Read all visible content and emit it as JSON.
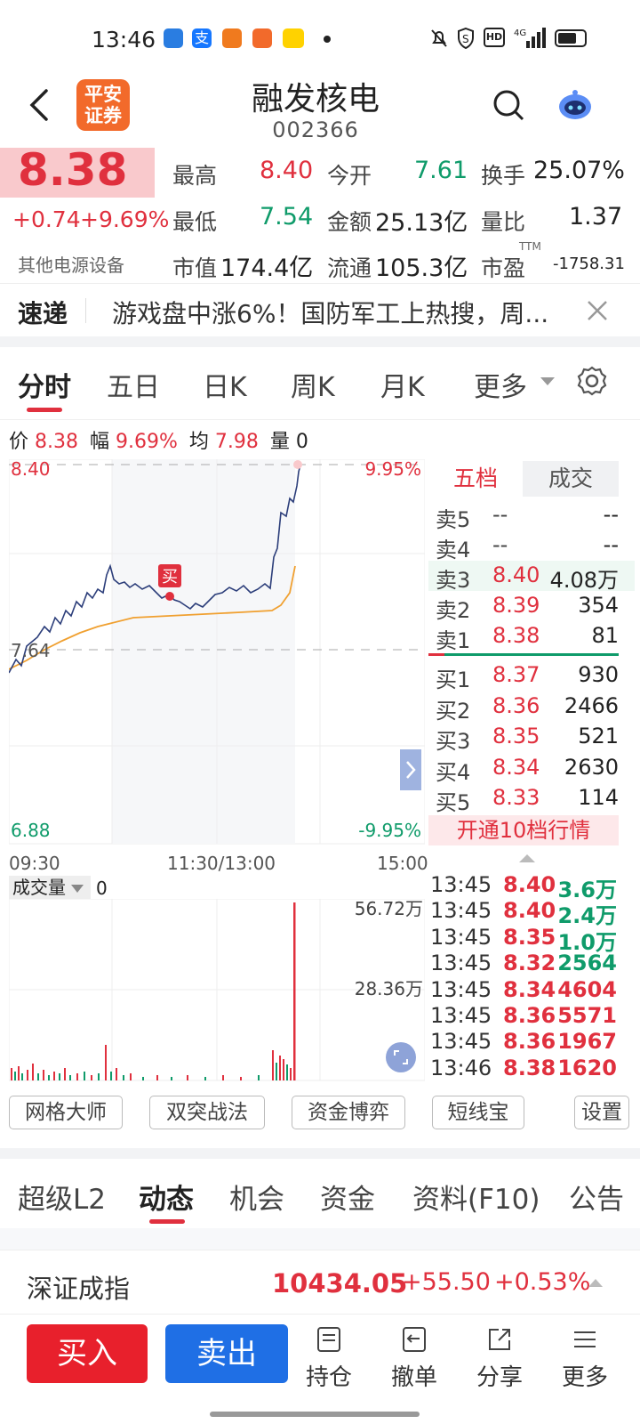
{
  "status": {
    "time": "13:46",
    "right_icons": [
      "mute-icon",
      "shield-icon",
      "hd-icon",
      "signal-4g-icon",
      "battery-icon"
    ]
  },
  "header": {
    "back": "back-icon",
    "broker_logo": "平安\n证券",
    "broker_logo_l1": "平安",
    "broker_logo_l2": "证券",
    "name": "融发核电",
    "code": "002366"
  },
  "quote": {
    "price": "8.38",
    "change": "+0.74",
    "pct": "+9.69%",
    "sector": "其他电源设备",
    "labels": {
      "high": "最高",
      "open": "今开",
      "turnover": "换手",
      "low": "最低",
      "amount": "金额",
      "vol_ratio": "量比",
      "mcap": "市值",
      "float": "流通",
      "pe": "市盈",
      "ttm": "TTM"
    },
    "values": {
      "high": "8.40",
      "open": "7.61",
      "turnover": "25.07%",
      "low": "7.54",
      "amount": "25.13亿",
      "vol_ratio": "1.37",
      "mcap": "174.4亿",
      "float": "105.3亿",
      "pe": "-1758.31"
    }
  },
  "news": {
    "tag": "速递",
    "text": "游戏盘中涨6%！国防军工上热搜，周..."
  },
  "tabs": [
    "分时",
    "五日",
    "日K",
    "周K",
    "月K",
    "更多"
  ],
  "info_line": {
    "price_label": "价",
    "price": "8.38",
    "pct_label": "幅",
    "pct": "9.69%",
    "avg_label": "均",
    "avg": "7.98",
    "vol_label": "量",
    "vol": "0"
  },
  "chart_labels": {
    "top": "8.40",
    "top_pct": "9.95%",
    "mid": "7.64",
    "bottom": "6.88",
    "bottom_pct": "-9.95%",
    "t0": "09:30",
    "t1": "11:30/13:00",
    "t2": "15:00",
    "buy_mark": "买",
    "vol_label": "成交量",
    "vol_value": "0",
    "vol_top": "56.72万",
    "vol_mid": "28.36万"
  },
  "orderbook": {
    "tab1": "五档",
    "tab2": "成交",
    "asks": [
      {
        "l": "卖5",
        "p": "--",
        "v": "--"
      },
      {
        "l": "卖4",
        "p": "--",
        "v": "--"
      },
      {
        "l": "卖3",
        "p": "8.40",
        "v": "4.08万"
      },
      {
        "l": "卖2",
        "p": "8.39",
        "v": "354"
      },
      {
        "l": "卖1",
        "p": "8.38",
        "v": "81"
      }
    ],
    "bids": [
      {
        "l": "买1",
        "p": "8.37",
        "v": "930"
      },
      {
        "l": "买2",
        "p": "8.36",
        "v": "2466"
      },
      {
        "l": "买3",
        "p": "8.35",
        "v": "521"
      },
      {
        "l": "买4",
        "p": "8.34",
        "v": "2630"
      },
      {
        "l": "买5",
        "p": "8.33",
        "v": "114"
      }
    ],
    "l10": "开通10档行情"
  },
  "trades": [
    {
      "t": "13:45",
      "p": "8.40",
      "v": "3.6万",
      "c": "g"
    },
    {
      "t": "13:45",
      "p": "8.40",
      "v": "2.4万",
      "c": "g"
    },
    {
      "t": "13:45",
      "p": "8.35",
      "v": "1.0万",
      "c": "g"
    },
    {
      "t": "13:45",
      "p": "8.32",
      "v": "2564",
      "c": "g"
    },
    {
      "t": "13:45",
      "p": "8.34",
      "v": "4604",
      "c": "r"
    },
    {
      "t": "13:45",
      "p": "8.36",
      "v": "5571",
      "c": "r"
    },
    {
      "t": "13:45",
      "p": "8.36",
      "v": "1967",
      "c": "r"
    },
    {
      "t": "13:46",
      "p": "8.38",
      "v": "1620",
      "c": "r"
    }
  ],
  "tools": [
    "网格大师",
    "双突战法",
    "资金博弈",
    "短线宝",
    "设置"
  ],
  "bottom_tabs": [
    "超级L2",
    "动态",
    "机会",
    "资金",
    "资料(F10)",
    "公告"
  ],
  "index": {
    "name": "深证成指",
    "value": "10434.05",
    "change": "+55.50",
    "pct": "+0.53%"
  },
  "actions": {
    "buy": "买入",
    "sell": "卖出",
    "holdings": "持仓",
    "cancel": "撤单",
    "share": "分享",
    "more": "更多"
  },
  "colors": {
    "up": "#e0303e",
    "down": "#0f9b6a",
    "buy_btn": "#e8202c",
    "sell_btn": "#1f6fe5",
    "logo": "#f26a2b"
  }
}
